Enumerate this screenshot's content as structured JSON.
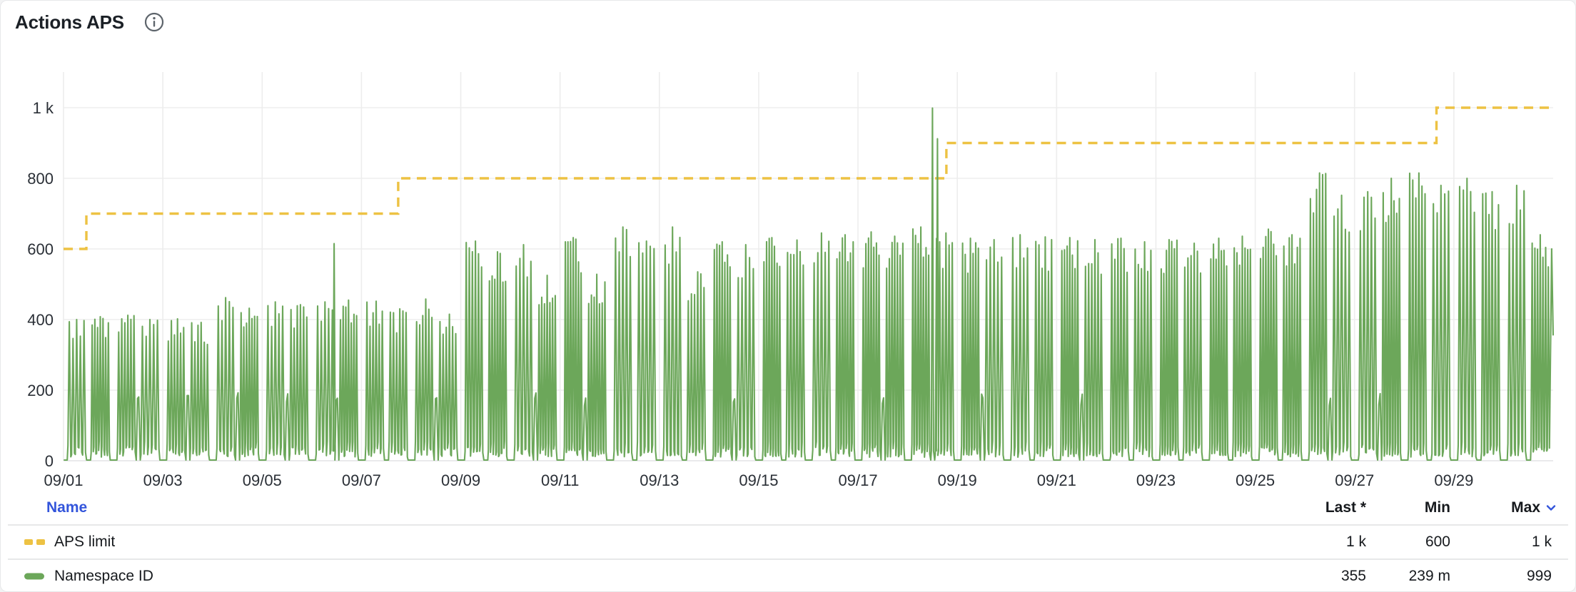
{
  "panel": {
    "title": "Actions APS",
    "info_icon": "info-circle-icon"
  },
  "colors": {
    "accent_blue": "#3355db",
    "series_green": "#6ca75a",
    "series_yellow": "#edc243",
    "grid": "#ededed",
    "axis_line": "#e3e4e5",
    "axis_text": "#2a2f36",
    "title_text": "#1b2026",
    "row_text": "#16191d",
    "separator": "#e7e8e9",
    "icon_gray": "#5d646b"
  },
  "chart_data": {
    "type": "line",
    "title": "Actions APS",
    "xlabel": "",
    "ylabel": "",
    "ylim": [
      0,
      1000
    ],
    "x_days_span": 30,
    "grid": true,
    "legend_position": "bottom-table",
    "y_ticks": [
      {
        "value": 0,
        "label": "0"
      },
      {
        "value": 200,
        "label": "200"
      },
      {
        "value": 400,
        "label": "400"
      },
      {
        "value": 600,
        "label": "600"
      },
      {
        "value": 800,
        "label": "800"
      },
      {
        "value": 1000,
        "label": "1 k"
      }
    ],
    "x_ticks": [
      {
        "day": 0,
        "label": "09/01"
      },
      {
        "day": 2,
        "label": "09/03"
      },
      {
        "day": 4,
        "label": "09/05"
      },
      {
        "day": 6,
        "label": "09/07"
      },
      {
        "day": 8,
        "label": "09/09"
      },
      {
        "day": 10,
        "label": "09/11"
      },
      {
        "day": 12,
        "label": "09/13"
      },
      {
        "day": 14,
        "label": "09/15"
      },
      {
        "day": 16,
        "label": "09/17"
      },
      {
        "day": 18,
        "label": "09/19"
      },
      {
        "day": 20,
        "label": "09/21"
      },
      {
        "day": 22,
        "label": "09/23"
      },
      {
        "day": 24,
        "label": "09/25"
      },
      {
        "day": 26,
        "label": "09/27"
      },
      {
        "day": 28,
        "label": "09/29"
      }
    ],
    "series": [
      {
        "name": "APS limit",
        "style": "dashed-step",
        "color": "#edc243",
        "steps": [
          {
            "from_day": 0,
            "value": 600
          },
          {
            "from_day": 0.46,
            "value": 700
          },
          {
            "from_day": 6.74,
            "value": 800
          },
          {
            "from_day": 17.78,
            "value": 900
          },
          {
            "from_day": 27.65,
            "value": 1000
          }
        ],
        "end_day": 30
      },
      {
        "name": "Namespace ID",
        "style": "spiky-line",
        "color": "#6ca75a",
        "baseline_value": 2,
        "daily_burst_peaks": [
          [
            400,
            408
          ],
          [
            412,
            400
          ],
          [
            402,
            392
          ],
          [
            462,
            432
          ],
          [
            450,
            442
          ],
          [
            450,
            455
          ],
          [
            452,
            430
          ],
          [
            458,
            415
          ],
          [
            622,
            592
          ],
          [
            612,
            525
          ],
          [
            632,
            528
          ],
          [
            662,
            622
          ],
          [
            662,
            535
          ],
          [
            620,
            612
          ],
          [
            632,
            625
          ],
          [
            645,
            640
          ],
          [
            648,
            636
          ],
          [
            662,
            645
          ],
          [
            630,
            626
          ],
          [
            640,
            634
          ],
          [
            632,
            626
          ],
          [
            630,
            620
          ],
          [
            626,
            616
          ],
          [
            630,
            636
          ],
          [
            656,
            640
          ],
          [
            815,
            752
          ],
          [
            762,
            800
          ],
          [
            815,
            780
          ],
          [
            800,
            762
          ],
          [
            780,
            640
          ]
        ],
        "outlier_spikes": [
          {
            "day": 5.45,
            "value": 615
          },
          {
            "day": 17.5,
            "value": 999
          },
          {
            "day": 17.6,
            "value": 912
          }
        ],
        "end_value": 355
      }
    ]
  },
  "legend": {
    "columns": {
      "name": "Name",
      "last": "Last *",
      "min": "Min",
      "max": "Max"
    },
    "sort": {
      "column": "max",
      "direction": "desc"
    },
    "rows": [
      {
        "name": "APS limit",
        "swatch": "yellow-dashed",
        "last": "1 k",
        "min": "600",
        "max": "1 k"
      },
      {
        "name": "Namespace ID",
        "swatch": "green-solid",
        "last": "355",
        "min": "239 m",
        "max": "999"
      }
    ]
  }
}
